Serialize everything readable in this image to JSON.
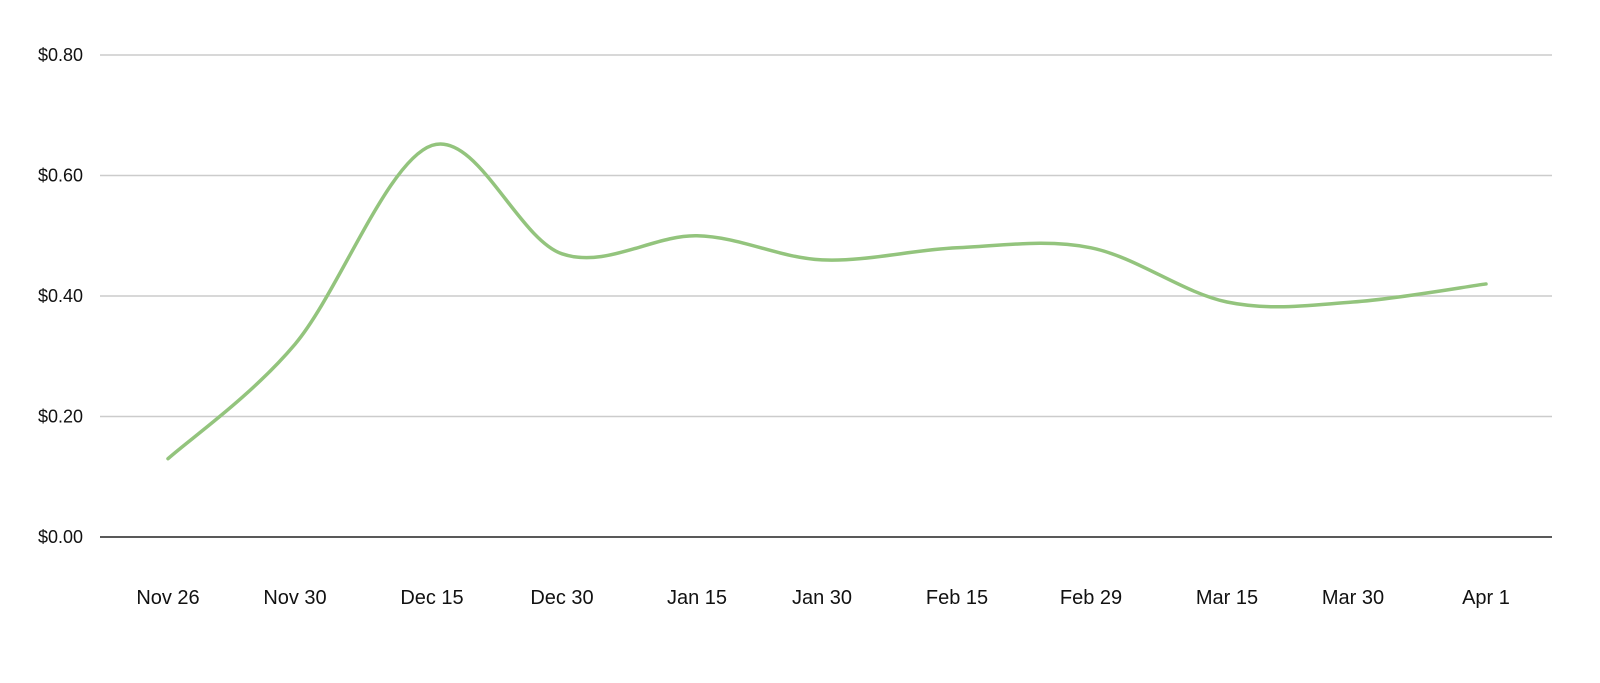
{
  "chart_data": {
    "type": "line",
    "title": "",
    "xlabel": "",
    "ylabel": "",
    "categories": [
      "Nov 26",
      "Nov 30",
      "Dec 15",
      "Dec 30",
      "Jan 15",
      "Jan 30",
      "Feb 15",
      "Feb 29",
      "Mar 15",
      "Mar 30",
      "Apr 1"
    ],
    "series": [
      {
        "values": [
          0.13,
          0.32,
          0.65,
          0.47,
          0.5,
          0.46,
          0.48,
          0.48,
          0.39,
          0.39,
          0.42
        ]
      }
    ],
    "ylim": [
      0,
      0.8
    ],
    "yticks": [
      0.0,
      0.2,
      0.4,
      0.6,
      0.8
    ],
    "ytick_labels": [
      "$0.00",
      "$0.20",
      "$0.40",
      "$0.60",
      "$0.80"
    ],
    "grid": true,
    "legend": "none",
    "line_color": "#93c47d",
    "grid_color": "#cccccc",
    "axis_color": "#222222"
  }
}
